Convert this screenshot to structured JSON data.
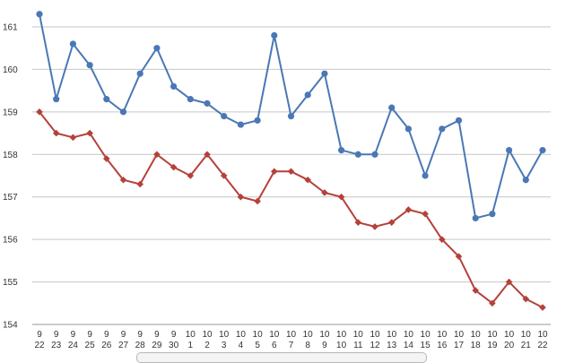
{
  "chart_data": {
    "type": "line",
    "title": "",
    "xlabel": "",
    "ylabel": "",
    "ylim": [
      154,
      161.4
    ],
    "yticks": [
      154,
      155,
      156,
      157,
      158,
      159,
      160,
      161
    ],
    "grid": true,
    "legend": "none",
    "categories": [
      {
        "month": "9",
        "day": "22"
      },
      {
        "month": "9",
        "day": "23"
      },
      {
        "month": "9",
        "day": "24"
      },
      {
        "month": "9",
        "day": "25"
      },
      {
        "month": "9",
        "day": "26"
      },
      {
        "month": "9",
        "day": "27"
      },
      {
        "month": "9",
        "day": "28"
      },
      {
        "month": "9",
        "day": "29"
      },
      {
        "month": "9",
        "day": "30"
      },
      {
        "month": "10",
        "day": "1"
      },
      {
        "month": "10",
        "day": "2"
      },
      {
        "month": "10",
        "day": "3"
      },
      {
        "month": "10",
        "day": "4"
      },
      {
        "month": "10",
        "day": "5"
      },
      {
        "month": "10",
        "day": "6"
      },
      {
        "month": "10",
        "day": "7"
      },
      {
        "month": "10",
        "day": "8"
      },
      {
        "month": "10",
        "day": "9"
      },
      {
        "month": "10",
        "day": "10"
      },
      {
        "month": "10",
        "day": "11"
      },
      {
        "month": "10",
        "day": "12"
      },
      {
        "month": "10",
        "day": "13"
      },
      {
        "month": "10",
        "day": "14"
      },
      {
        "month": "10",
        "day": "15"
      },
      {
        "month": "10",
        "day": "16"
      },
      {
        "month": "10",
        "day": "17"
      },
      {
        "month": "10",
        "day": "18"
      },
      {
        "month": "10",
        "day": "19"
      },
      {
        "month": "10",
        "day": "20"
      },
      {
        "month": "10",
        "day": "21"
      },
      {
        "month": "10",
        "day": "22"
      }
    ],
    "series": [
      {
        "color": "#4a78b4",
        "marker": "circle",
        "values": [
          161.3,
          159.3,
          160.6,
          160.1,
          159.3,
          159.0,
          159.9,
          160.5,
          159.6,
          159.3,
          159.2,
          158.9,
          158.7,
          158.8,
          160.8,
          158.9,
          159.4,
          159.9,
          158.1,
          158.0,
          158.0,
          159.1,
          158.6,
          157.5,
          158.6,
          158.8,
          156.5,
          156.6,
          158.1,
          157.4,
          158.1
        ]
      },
      {
        "color": "#b5413b",
        "marker": "diamond",
        "values": [
          159.0,
          158.5,
          158.4,
          158.5,
          157.9,
          157.4,
          157.3,
          158.0,
          157.7,
          157.5,
          158.0,
          157.5,
          157.0,
          156.9,
          157.6,
          157.6,
          157.4,
          157.1,
          157.0,
          156.4,
          156.3,
          156.4,
          156.7,
          156.6,
          156.0,
          155.6,
          154.8,
          154.5,
          155.0,
          154.6,
          154.4
        ]
      }
    ]
  }
}
